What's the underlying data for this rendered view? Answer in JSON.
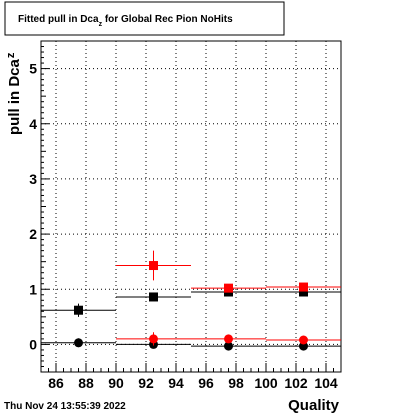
{
  "chart_data": {
    "type": "scatter",
    "title": {
      "prefix": "Fitted pull in Dca",
      "subscript": "z",
      "suffix": " for Global Rec Pion NoHits"
    },
    "ylabel": {
      "main": "pull in Dca",
      "subscript": "z"
    },
    "xlabel": "Quality",
    "xlim": [
      85,
      105
    ],
    "ylim": [
      -0.5,
      5.5
    ],
    "x_ticks": [
      {
        "value": 86,
        "label": "86"
      },
      {
        "value": 88,
        "label": "88"
      },
      {
        "value": 90,
        "label": "90"
      },
      {
        "value": 92,
        "label": "92"
      },
      {
        "value": 94,
        "label": "94"
      },
      {
        "value": 96,
        "label": "96"
      },
      {
        "value": 98,
        "label": "98"
      },
      {
        "value": 100,
        "label": "100"
      },
      {
        "value": 102,
        "label": "102"
      },
      {
        "value": 104,
        "label": "104"
      }
    ],
    "y_ticks": [
      {
        "value": 0,
        "label": "0"
      },
      {
        "value": 1,
        "label": "1"
      },
      {
        "value": 2,
        "label": "2"
      },
      {
        "value": 3,
        "label": "3"
      },
      {
        "value": 4,
        "label": "4"
      },
      {
        "value": 5,
        "label": "5"
      }
    ],
    "grid": true,
    "series": [
      {
        "color": "#000000",
        "marker": "square",
        "points": [
          {
            "x": 87.5,
            "y": 0.62,
            "xerr": 2.5,
            "yerr": 0.12
          },
          {
            "x": 92.5,
            "y": 0.86,
            "xerr": 2.5,
            "yerr": 0.04
          },
          {
            "x": 97.5,
            "y": 0.95,
            "xerr": 2.5,
            "yerr": 0.03
          },
          {
            "x": 102.5,
            "y": 0.95,
            "xerr": 2.5,
            "yerr": 0.03
          }
        ]
      },
      {
        "color": "#ff0000",
        "marker": "square",
        "points": [
          {
            "x": 92.5,
            "y": 1.43,
            "xerr": 2.5,
            "yerr": 0.27
          },
          {
            "x": 97.5,
            "y": 1.02,
            "xerr": 2.5,
            "yerr": 0.05
          },
          {
            "x": 102.5,
            "y": 1.04,
            "xerr": 2.5,
            "yerr": 0.03
          }
        ]
      },
      {
        "color": "#000000",
        "marker": "circle",
        "points": [
          {
            "x": 87.5,
            "y": 0.03,
            "xerr": 2.5,
            "yerr": 0.08
          },
          {
            "x": 92.5,
            "y": 0.0,
            "xerr": 2.5,
            "yerr": 0.03
          },
          {
            "x": 97.5,
            "y": -0.03,
            "xerr": 2.5,
            "yerr": 0.02
          },
          {
            "x": 102.5,
            "y": -0.03,
            "xerr": 2.5,
            "yerr": 0.02
          }
        ]
      },
      {
        "color": "#ff0000",
        "marker": "circle",
        "points": [
          {
            "x": 92.5,
            "y": 0.1,
            "xerr": 2.5,
            "yerr": 0.12
          },
          {
            "x": 97.5,
            "y": 0.1,
            "xerr": 2.5,
            "yerr": 0.04
          },
          {
            "x": 102.5,
            "y": 0.08,
            "xerr": 2.5,
            "yerr": 0.03
          }
        ]
      }
    ]
  },
  "timestamp": "Thu Nov 24 13:55:39 2022"
}
